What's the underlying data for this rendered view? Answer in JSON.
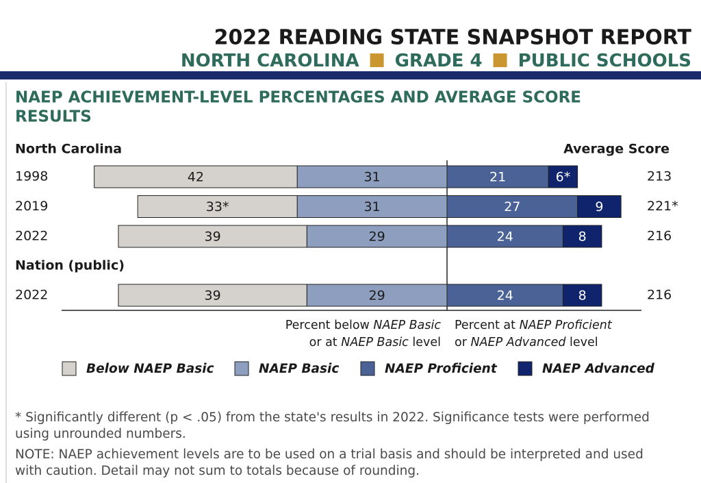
{
  "header": {
    "title": "2022 READING STATE SNAPSHOT REPORT",
    "subtitle": [
      "NORTH CAROLINA",
      "GRADE 4",
      "PUBLIC SCHOOLS"
    ]
  },
  "section_title": [
    "NAEP ACHIEVEMENT-LEVEL PERCENTAGES AND AVERAGE SCORE",
    "RESULTS"
  ],
  "score_label": "Average Score",
  "left_note": [
    [
      "Percent below ",
      "NAEP Basic"
    ],
    [
      "or at ",
      "NAEP Basic",
      " level"
    ]
  ],
  "right_note": [
    [
      "Percent at ",
      "NAEP Proficient"
    ],
    [
      "or ",
      "NAEP Advanced",
      " level"
    ]
  ],
  "chart_data": [
    {
      "type": "diverging_bar",
      "title": "North Carolina",
      "categories": [
        "1998",
        "2019",
        "2022"
      ],
      "series": [
        {
          "name": "Below NAEP Basic",
          "color": "#d5d1cc",
          "side": "left",
          "values": [
            42,
            33,
            39
          ],
          "value_labels": [
            "42",
            "33*",
            "39"
          ]
        },
        {
          "name": "NAEP Basic",
          "color": "#8e9ebf",
          "side": "left",
          "values": [
            31,
            31,
            29
          ],
          "value_labels": [
            "31",
            "31",
            "29"
          ]
        },
        {
          "name": "NAEP Proficient",
          "color": "#4a6296",
          "side": "right",
          "values": [
            21,
            27,
            24
          ],
          "value_labels": [
            "21",
            "27",
            "24"
          ]
        },
        {
          "name": "NAEP Advanced",
          "color": "#10246e",
          "side": "right",
          "values": [
            6,
            9,
            8
          ],
          "value_labels": [
            "6*",
            "9",
            "8"
          ]
        }
      ],
      "scores": {
        "values": [
          213,
          221,
          216
        ],
        "value_labels": [
          "213",
          "221*",
          "216"
        ]
      }
    },
    {
      "type": "diverging_bar",
      "title": "Nation (public)",
      "categories": [
        "2022"
      ],
      "series": [
        {
          "name": "Below NAEP Basic",
          "color": "#d5d1cc",
          "side": "left",
          "values": [
            39
          ],
          "value_labels": [
            "39"
          ]
        },
        {
          "name": "NAEP Basic",
          "color": "#8e9ebf",
          "side": "left",
          "values": [
            29
          ],
          "value_labels": [
            "29"
          ]
        },
        {
          "name": "NAEP Proficient",
          "color": "#4a6296",
          "side": "right",
          "values": [
            24
          ],
          "value_labels": [
            "24"
          ]
        },
        {
          "name": "NAEP Advanced",
          "color": "#10246e",
          "side": "right",
          "values": [
            8
          ],
          "value_labels": [
            "8"
          ]
        }
      ],
      "scores": {
        "values": [
          216
        ],
        "value_labels": [
          "216"
        ]
      }
    }
  ],
  "footnotes": [
    "*  Significantly different (p < .05) from the state's results in 2022. Significance tests were performed using unrounded numbers.",
    "NOTE:  NAEP achievement levels are to be used on a trial basis and should be interpreted and used with caution. Detail may not sum to totals because of rounding."
  ]
}
